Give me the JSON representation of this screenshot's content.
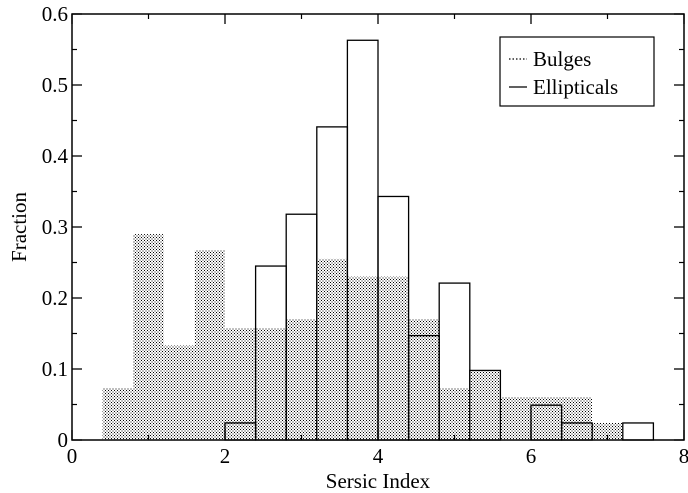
{
  "chart_data": {
    "type": "bar",
    "title": "",
    "xlabel": "Sersic Index",
    "ylabel": "Fraction",
    "xlim": [
      0,
      8
    ],
    "ylim": [
      0,
      0.6
    ],
    "grid": false,
    "legend_position": "top-right",
    "x_ticks": [
      0,
      2,
      4,
      6,
      8
    ],
    "y_ticks": [
      0,
      0.1,
      0.2,
      0.3,
      0.4,
      0.5,
      0.6
    ],
    "x_tick_labels": [
      "0",
      "2",
      "4",
      "6",
      "8"
    ],
    "y_tick_labels": [
      "0",
      "0.1",
      "0.2",
      "0.3",
      "0.4",
      "0.5",
      "0.6"
    ],
    "bin_edges": [
      0.4,
      0.8,
      1.2,
      1.6,
      2.0,
      2.4,
      2.8,
      3.2,
      3.6,
      4.0,
      4.4,
      4.8,
      5.2,
      5.6,
      6.0,
      6.4,
      6.8,
      7.2,
      7.6
    ],
    "series": [
      {
        "name": "Bulges",
        "style": "dotted-fill",
        "values": [
          0.073,
          0.29,
          0.133,
          0.267,
          0.157,
          0.157,
          0.17,
          0.255,
          0.23,
          0.23,
          0.17,
          0.073,
          0.097,
          0.06,
          0.06,
          0.06,
          0.024,
          0
        ]
      },
      {
        "name": "Ellipticals",
        "style": "outline",
        "values": [
          0,
          0,
          0,
          0,
          0.024,
          0.245,
          0.318,
          0.441,
          0.563,
          0.343,
          0.147,
          0.221,
          0.098,
          0,
          0.049,
          0.024,
          0,
          0.024
        ]
      }
    ]
  }
}
